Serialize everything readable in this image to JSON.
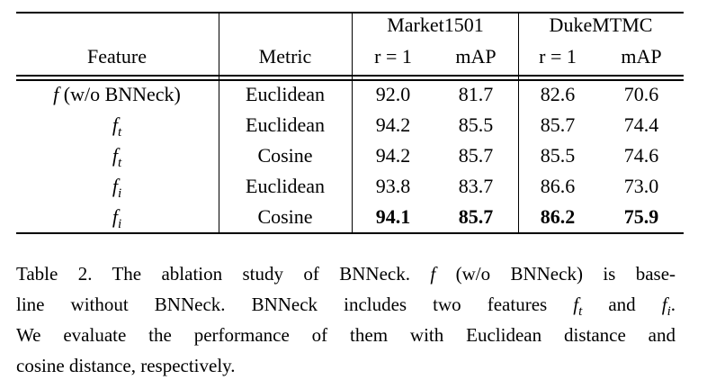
{
  "table": {
    "group_headers": [
      "Market1501",
      "DukeMTMC"
    ],
    "headers": [
      "Feature",
      "Metric",
      "r = 1",
      "mAP",
      "r = 1",
      "mAP"
    ],
    "rows": [
      {
        "feature": {
          "symbol": "f",
          "note": "(w/o BNNeck)"
        },
        "cells": [
          "Euclidean",
          "92.0",
          "81.7",
          "82.6",
          "70.6"
        ]
      },
      {
        "feature": {
          "symbol": "f",
          "sub": "t"
        },
        "cells": [
          "Euclidean",
          "94.2",
          "85.5",
          "85.7",
          "74.4"
        ]
      },
      {
        "feature": {
          "symbol": "f",
          "sub": "t"
        },
        "cells": [
          "Cosine",
          "94.2",
          "85.7",
          "85.5",
          "74.6"
        ]
      },
      {
        "feature": {
          "symbol": "f",
          "sub": "i"
        },
        "cells": [
          "Euclidean",
          "93.8",
          "83.7",
          "86.6",
          "73.0"
        ]
      },
      {
        "feature": {
          "symbol": "f",
          "sub": "i"
        },
        "cells": [
          "Cosine",
          "94.1",
          "85.7",
          "86.2",
          "75.9"
        ]
      }
    ]
  },
  "caption": {
    "lines": [
      [
        "Table 2. The ablation study of BNNeck. ",
        {
          "symbol": "f"
        },
        " (w/o BNNeck) is base-"
      ],
      [
        "line without BNNeck. BNNeck includes two features ",
        {
          "symbol": "f",
          "sub": "t"
        },
        " and ",
        {
          "symbol": "f",
          "sub": "i"
        },
        "."
      ],
      [
        "We evaluate the performance of them with Euclidean distance and"
      ],
      [
        "cosine distance, respectively."
      ]
    ]
  }
}
